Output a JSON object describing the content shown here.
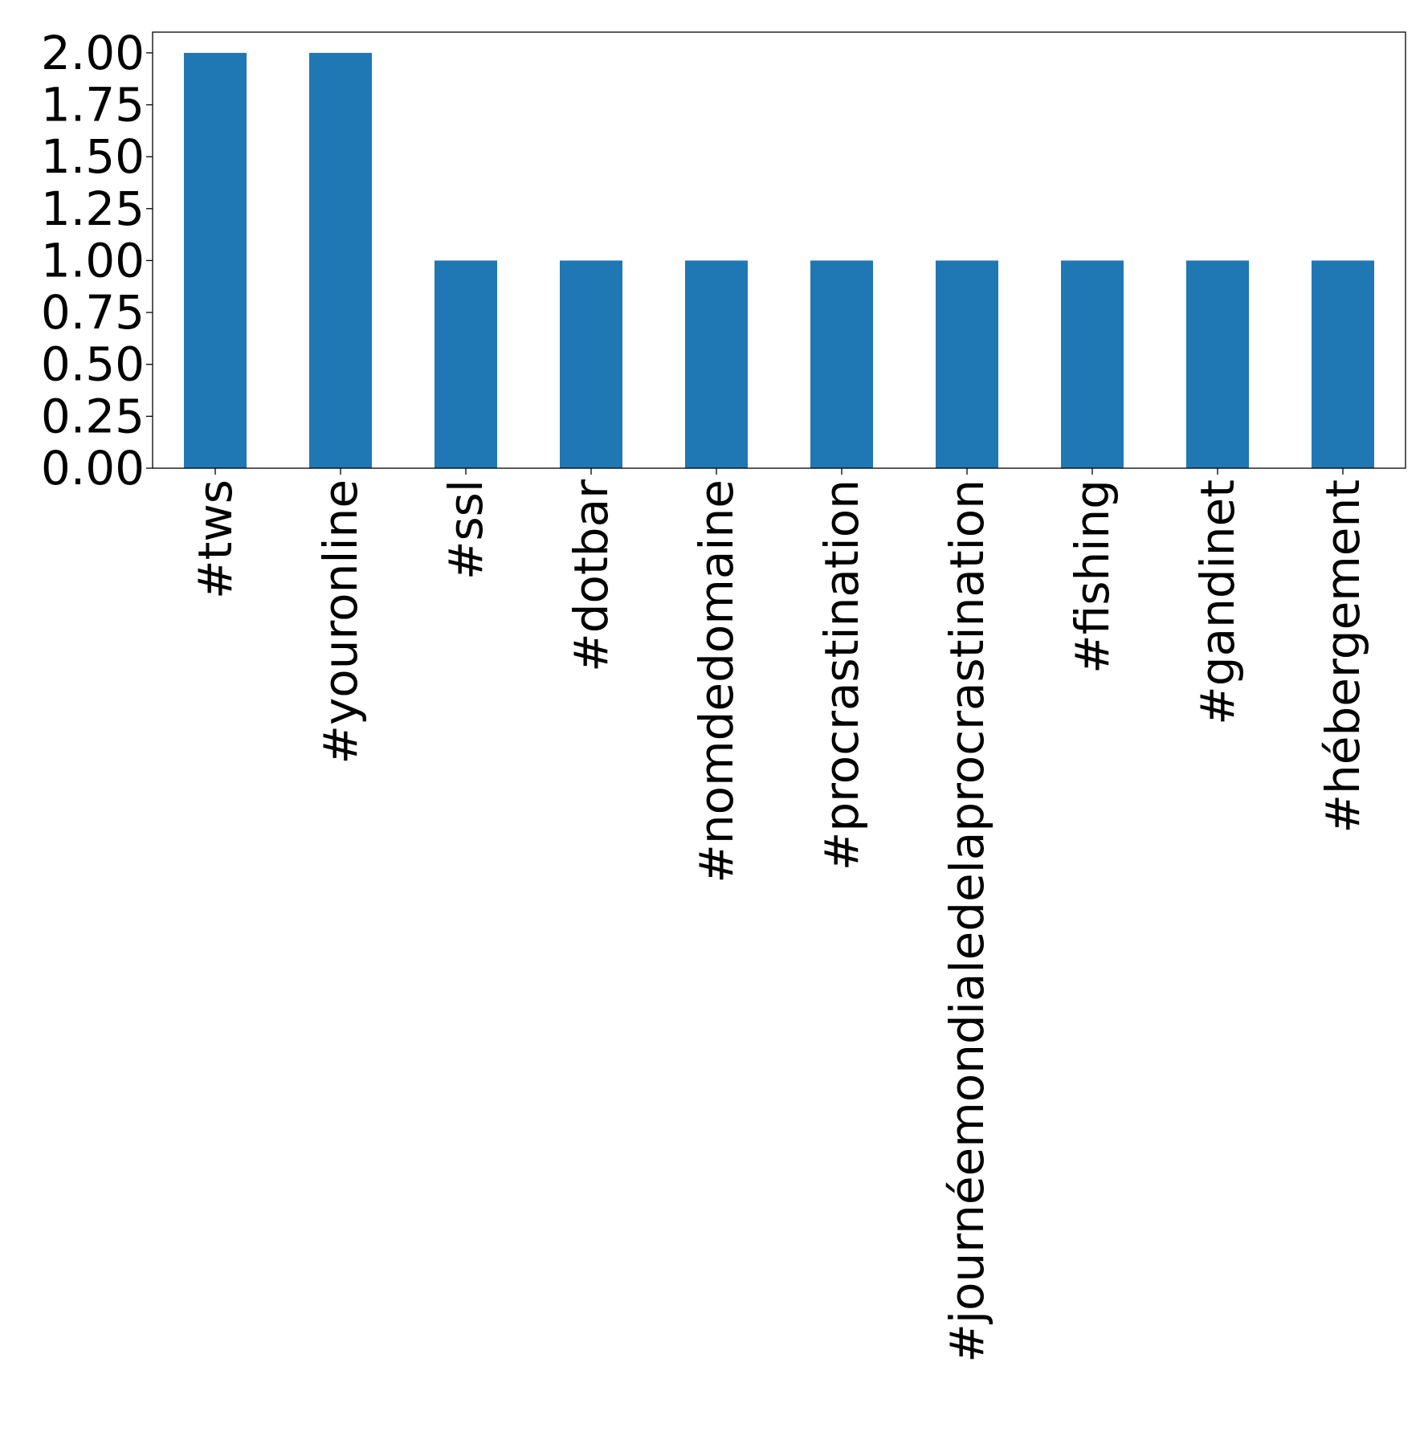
{
  "chart_data": {
    "type": "bar",
    "title": "",
    "xlabel": "",
    "ylabel": "",
    "categories": [
      "#tws",
      "#youronline",
      "#ssl",
      "#dotbar",
      "#nomdedomaine",
      "#procrastination",
      "#journéemondialedelaprocrastination",
      "#fishing",
      "#gandinet",
      "#hébergement"
    ],
    "values": [
      2,
      2,
      1,
      1,
      1,
      1,
      1,
      1,
      1,
      1
    ],
    "ylim": [
      0,
      2.1
    ],
    "yticks": [
      "0.00",
      "0.25",
      "0.50",
      "0.75",
      "1.00",
      "1.25",
      "1.50",
      "1.75",
      "2.00"
    ],
    "bar_color": "#1f77b4",
    "grid": false,
    "legend": "none"
  }
}
